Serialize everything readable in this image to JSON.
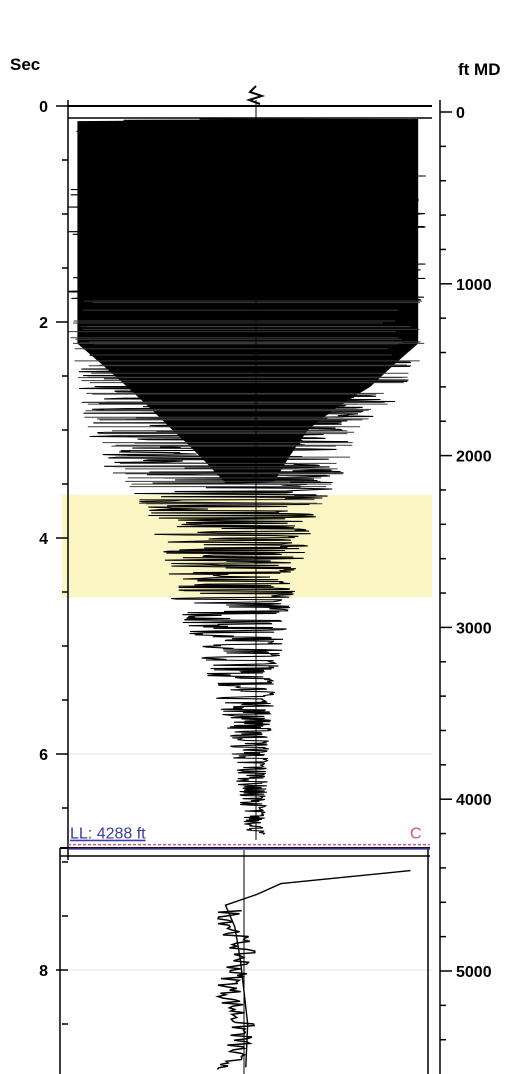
{
  "chart_data": {
    "type": "line",
    "title": "",
    "left_axis": {
      "label": "Sec",
      "ticks": [
        "0",
        "2",
        "4",
        "6",
        "8"
      ],
      "range": [
        0,
        8.95
      ]
    },
    "right_axis": {
      "label": "ft MD",
      "ticks": [
        "0",
        "1000",
        "2000",
        "3000",
        "4000",
        "5000"
      ],
      "range": [
        -50,
        5500
      ]
    },
    "highlight_band": {
      "from_sec": 3.6,
      "to_sec": 4.55,
      "color": "#fbf6c4"
    },
    "loss_line": {
      "label": "LL: 4288 ft",
      "depth_ft": 4288,
      "label_color": "#3b3ba8",
      "line_color": "#e0507a"
    },
    "end_marker": {
      "label": "C",
      "color": "#e0507a"
    },
    "trace_color": "#000000",
    "waveform_envelope": [
      {
        "sec": 0.12,
        "left": -1.0,
        "right": 0.97
      },
      {
        "sec": 2.2,
        "left": -1.0,
        "right": 0.97
      },
      {
        "sec": 2.6,
        "left": -0.95,
        "right": 0.9
      },
      {
        "sec": 3.0,
        "left": -0.9,
        "right": 0.6
      },
      {
        "sec": 3.4,
        "left": -0.8,
        "right": 0.5
      },
      {
        "sec": 3.8,
        "left": -0.6,
        "right": 0.35
      },
      {
        "sec": 4.2,
        "left": -0.5,
        "right": 0.27
      },
      {
        "sec": 4.7,
        "left": -0.45,
        "right": 0.2
      },
      {
        "sec": 5.3,
        "left": -0.25,
        "right": 0.12
      },
      {
        "sec": 5.9,
        "left": -0.15,
        "right": 0.08
      },
      {
        "sec": 6.7,
        "left": -0.06,
        "right": 0.05
      }
    ],
    "lower_trace": [
      {
        "sec": 7.08,
        "value": 0.9
      },
      {
        "sec": 7.2,
        "value": 0.2
      },
      {
        "sec": 7.3,
        "value": 0.07
      },
      {
        "sec": 7.4,
        "value": -0.1
      },
      {
        "sec": 7.6,
        "value": -0.05
      },
      {
        "sec": 7.9,
        "value": -0.02
      },
      {
        "sec": 8.2,
        "value": 0.0
      },
      {
        "sec": 8.5,
        "value": 0.02
      },
      {
        "sec": 8.9,
        "value": 0.01
      }
    ]
  }
}
